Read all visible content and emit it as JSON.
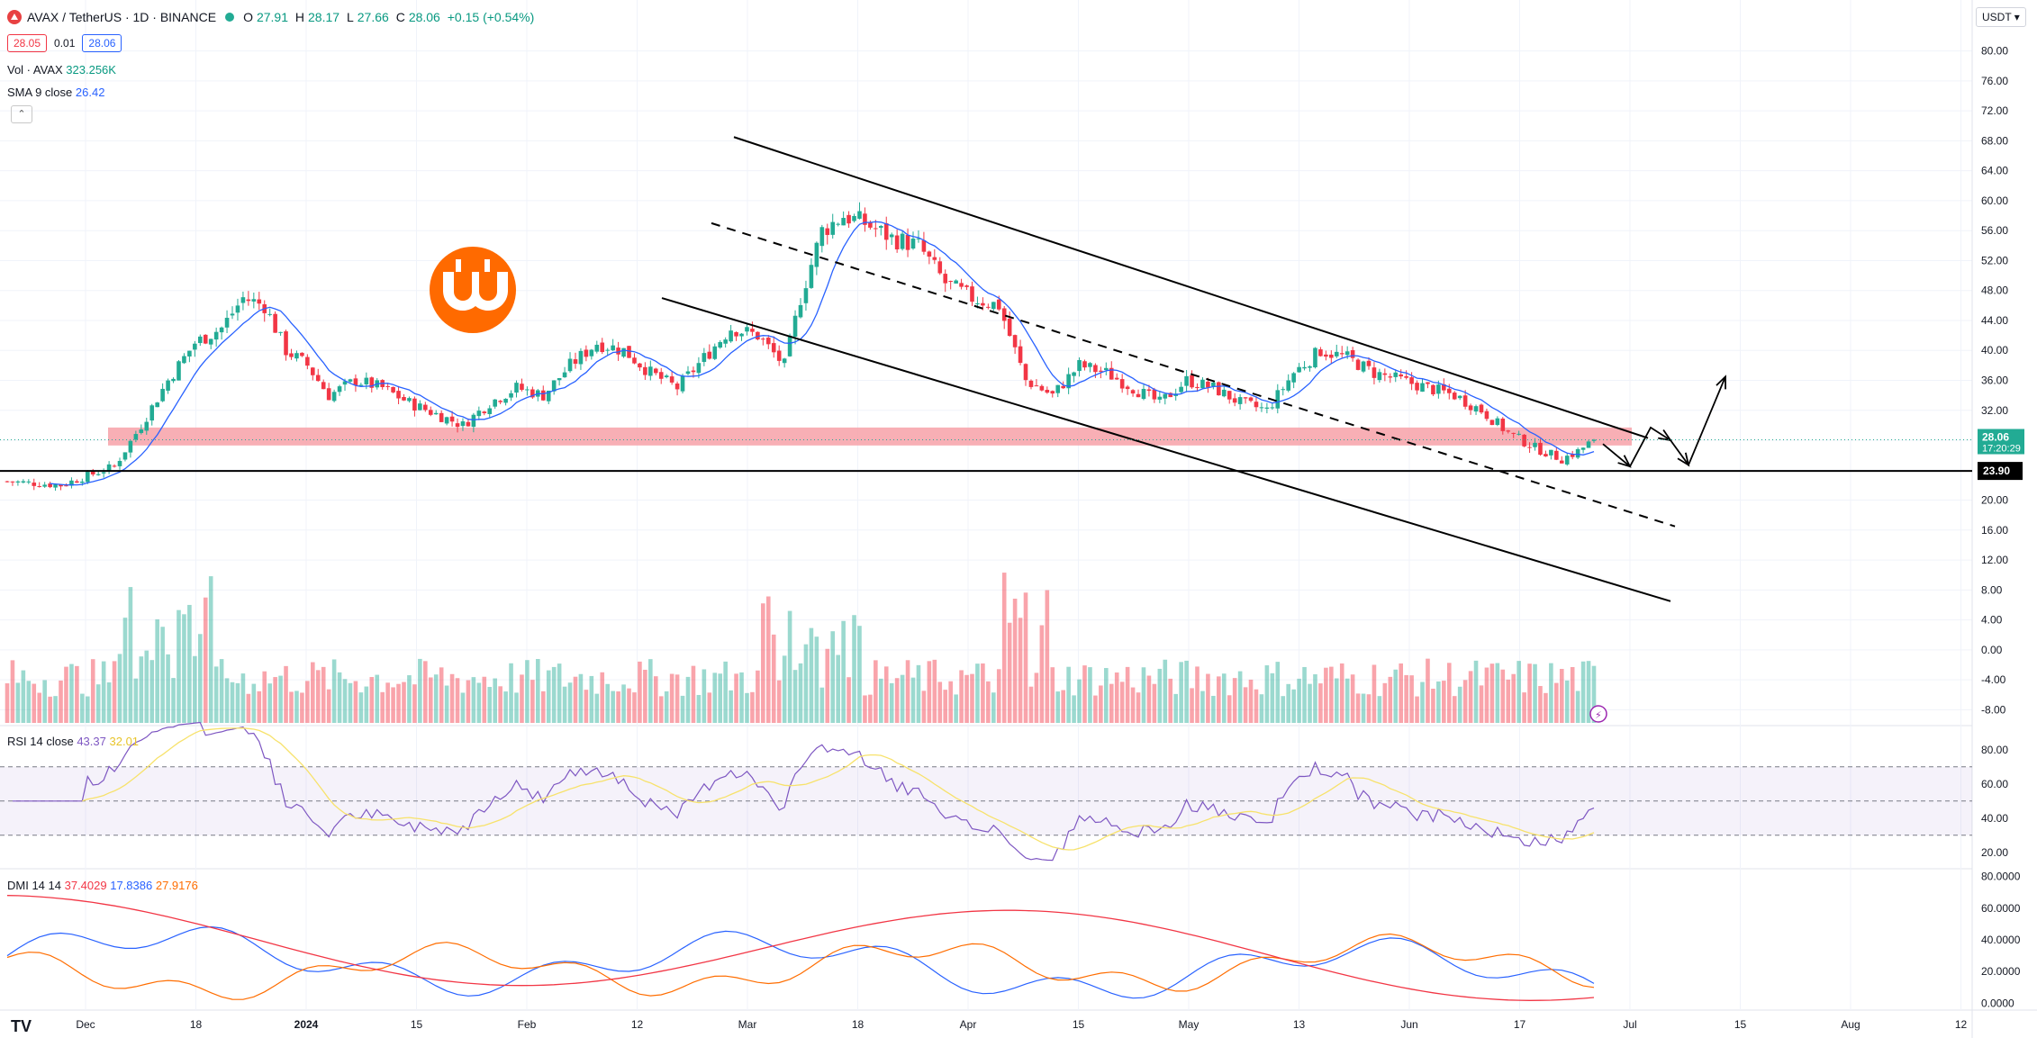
{
  "header": {
    "symbol_title": "AVAX / TetherUS · 1D · BINANCE",
    "ohlc": {
      "o_label": "O",
      "o": "27.91",
      "h_label": "H",
      "h": "28.17",
      "l_label": "L",
      "l": "27.66",
      "c_label": "C",
      "c": "28.06",
      "change": "+0.15 (+0.54%)"
    },
    "bid": "28.05",
    "spread": "0.01",
    "ask": "28.06",
    "volume_legend": {
      "label": "Vol · AVAX",
      "value": "323.256K"
    },
    "sma_legend": {
      "label": "SMA 9 close",
      "value": "26.42"
    },
    "currency_button": "USDT"
  },
  "colors": {
    "up": "#22ab94",
    "down": "#f23645",
    "sma": "#2962ff",
    "rsi": "#7e57c2",
    "rsi_ma": "#f7e26b",
    "dmi_plus": "#2962ff",
    "dmi_minus": "#ff6d00",
    "adx": "#f23645",
    "zone": "#f7a1a8"
  },
  "chart_data": [
    {
      "type": "candlestick",
      "price_axis_ticks": [
        "80.00",
        "76.00",
        "72.00",
        "68.00",
        "64.00",
        "60.00",
        "56.00",
        "52.00",
        "48.00",
        "44.00",
        "40.00",
        "36.00",
        "32.00",
        "28.00",
        "24.00",
        "20.00",
        "16.00",
        "12.00",
        "8.00",
        "4.00",
        "0.00",
        "-4.00",
        "-8.00"
      ],
      "time_axis_ticks": [
        "Dec",
        "18",
        "2024",
        "15",
        "Feb",
        "12",
        "Mar",
        "18",
        "Apr",
        "15",
        "May",
        "13",
        "Jun",
        "17",
        "Jul",
        "15",
        "Aug",
        "12"
      ],
      "ylim": [
        -10,
        82
      ],
      "current_price": {
        "value": "28.06",
        "countdown": "17:20:29"
      },
      "support_line": {
        "value": "23.90"
      },
      "resistance_zone": [
        27.3,
        29.7
      ],
      "candles_anchor_closes": [
        [
          0,
          22.5
        ],
        [
          10,
          22.0
        ],
        [
          20,
          24.5
        ],
        [
          25,
          30
        ],
        [
          30,
          36
        ],
        [
          35,
          41
        ],
        [
          40,
          43
        ],
        [
          44,
          47
        ],
        [
          48,
          46
        ],
        [
          52,
          40
        ],
        [
          56,
          38
        ],
        [
          60,
          34
        ],
        [
          65,
          36
        ],
        [
          70,
          35
        ],
        [
          75,
          33
        ],
        [
          80,
          31.5
        ],
        [
          85,
          30
        ],
        [
          90,
          33
        ],
        [
          95,
          35
        ],
        [
          100,
          34
        ],
        [
          105,
          38
        ],
        [
          110,
          41
        ],
        [
          115,
          40
        ],
        [
          120,
          37
        ],
        [
          125,
          35
        ],
        [
          130,
          39
        ],
        [
          135,
          43
        ],
        [
          140,
          42
        ],
        [
          145,
          38
        ],
        [
          148,
          47
        ],
        [
          152,
          56
        ],
        [
          156,
          58
        ],
        [
          160,
          57
        ],
        [
          165,
          55
        ],
        [
          170,
          54
        ],
        [
          175,
          49
        ],
        [
          180,
          47
        ],
        [
          185,
          46
        ],
        [
          190,
          36
        ],
        [
          195,
          34
        ],
        [
          200,
          38
        ],
        [
          205,
          37
        ],
        [
          210,
          35
        ],
        [
          215,
          33
        ],
        [
          220,
          36
        ],
        [
          225,
          35
        ],
        [
          230,
          33
        ],
        [
          235,
          32
        ],
        [
          240,
          37
        ],
        [
          245,
          40
        ],
        [
          250,
          39
        ],
        [
          255,
          37
        ],
        [
          260,
          36
        ],
        [
          265,
          35
        ],
        [
          270,
          34
        ],
        [
          275,
          32
        ],
        [
          280,
          29
        ],
        [
          285,
          27
        ],
        [
          290,
          25.5
        ],
        [
          293,
          26.5
        ],
        [
          296,
          28.06
        ]
      ],
      "sma": {
        "name": "SMA 9 close",
        "last": "26.42"
      },
      "volume_max": 14
    },
    {
      "type": "line",
      "pane": "RSI",
      "legend": {
        "label": "RSI 14 close",
        "rsi": "43.37",
        "ma": "32.01"
      },
      "axis_ticks": [
        "80.00",
        "60.00",
        "40.00",
        "20.00"
      ],
      "bands": [
        70,
        50,
        30
      ]
    },
    {
      "type": "line",
      "pane": "DMI",
      "legend": {
        "label": "DMI 14 14",
        "adx": "37.4029",
        "plus_di": "17.8386",
        "minus_di": "27.9176"
      },
      "axis_ticks": [
        "80.0000",
        "60.0000",
        "40.0000",
        "20.0000",
        "0.0000"
      ]
    }
  ]
}
